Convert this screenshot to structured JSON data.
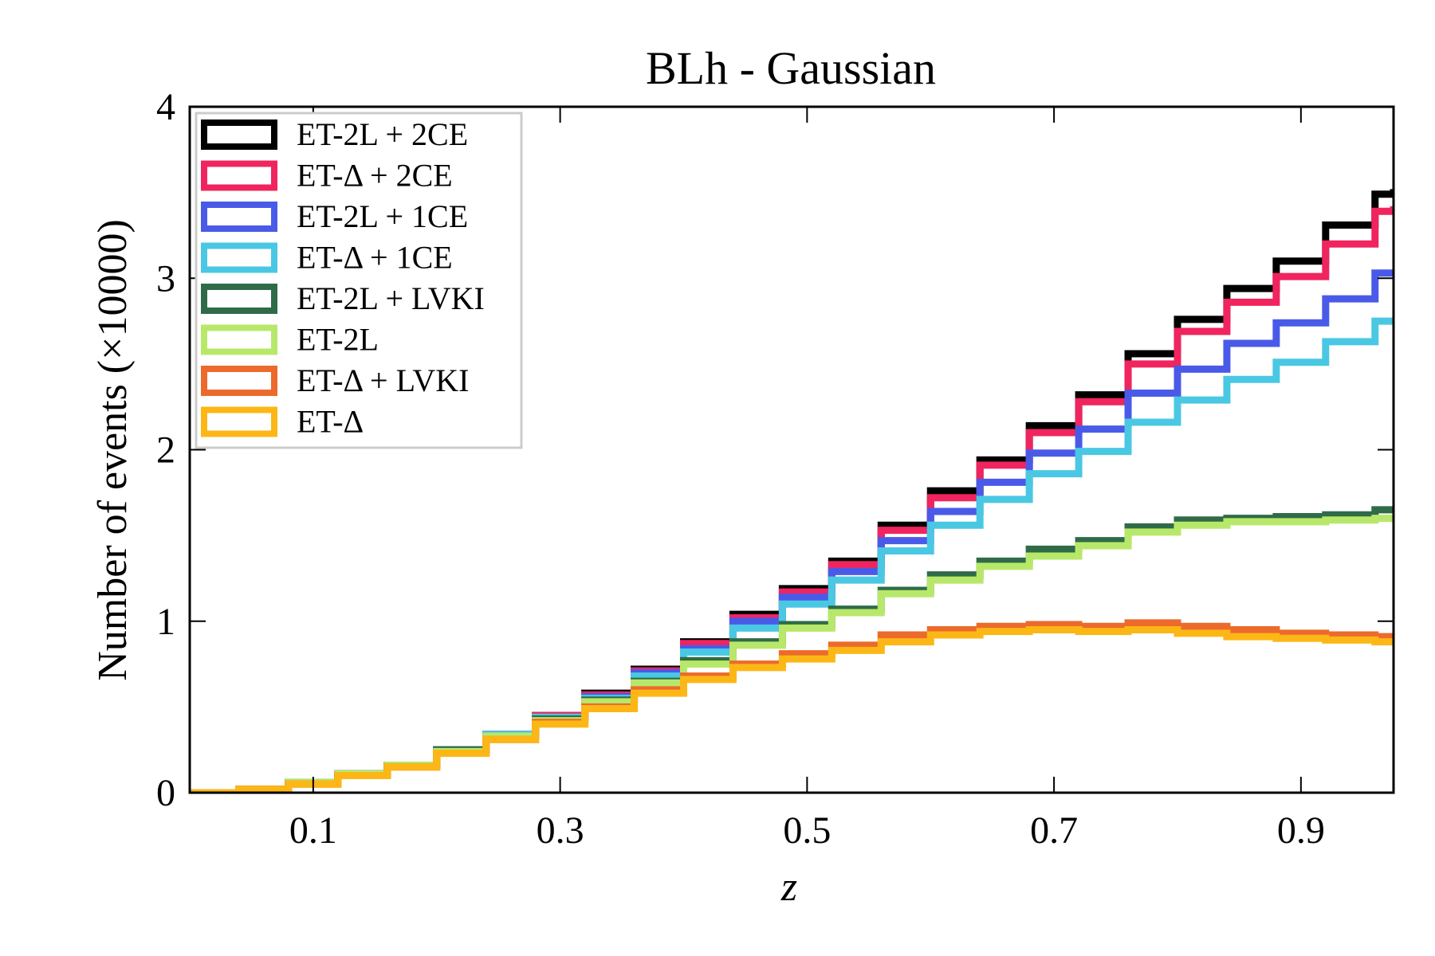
{
  "chart_data": {
    "type": "histogram-step",
    "title": "BLh - Gaussian",
    "xlabel": "z",
    "ylabel": "Number of events (×10000)",
    "xlim": [
      0.0,
      0.975
    ],
    "ylim": [
      0,
      4
    ],
    "x_ticks": [
      0.1,
      0.3,
      0.5,
      0.7,
      0.9
    ],
    "x_tick_labels": [
      "0.1",
      "0.3",
      "0.5",
      "0.7",
      "0.9"
    ],
    "y_ticks": [
      0,
      1,
      2,
      3,
      4
    ],
    "y_tick_labels": [
      "0",
      "1",
      "2",
      "3",
      "4"
    ],
    "grid": false,
    "legend_position": "top-left",
    "bin_edges": [
      0.0,
      0.04,
      0.08,
      0.12,
      0.16,
      0.2,
      0.24,
      0.28,
      0.32,
      0.36,
      0.4,
      0.44,
      0.48,
      0.52,
      0.56,
      0.6,
      0.64,
      0.68,
      0.72,
      0.76,
      0.8,
      0.84,
      0.88,
      0.92,
      0.96,
      0.975
    ],
    "series": [
      {
        "name": "ET-2L + 2CE",
        "color": "#000000",
        "values": [
          0.0,
          0.02,
          0.06,
          0.11,
          0.16,
          0.25,
          0.34,
          0.45,
          0.58,
          0.72,
          0.88,
          1.04,
          1.19,
          1.35,
          1.56,
          1.76,
          1.94,
          2.14,
          2.32,
          2.56,
          2.76,
          2.94,
          3.1,
          3.31,
          3.49,
          3.52
        ]
      },
      {
        "name": "ET-Δ + 2CE",
        "color": "#f0245e",
        "values": [
          0.0,
          0.02,
          0.06,
          0.11,
          0.16,
          0.25,
          0.34,
          0.45,
          0.57,
          0.71,
          0.87,
          1.02,
          1.17,
          1.33,
          1.53,
          1.72,
          1.91,
          2.1,
          2.28,
          2.5,
          2.69,
          2.86,
          3.01,
          3.2,
          3.39,
          3.42
        ]
      },
      {
        "name": "ET-2L + 1CE",
        "color": "#4a5ae8",
        "values": [
          0.0,
          0.02,
          0.06,
          0.11,
          0.16,
          0.25,
          0.34,
          0.44,
          0.56,
          0.7,
          0.84,
          1.0,
          1.14,
          1.29,
          1.47,
          1.64,
          1.81,
          1.98,
          2.12,
          2.33,
          2.47,
          2.62,
          2.74,
          2.88,
          3.03,
          3.05
        ]
      },
      {
        "name": "ET-Δ + 1CE",
        "color": "#4ac8e3",
        "values": [
          0.0,
          0.02,
          0.06,
          0.11,
          0.16,
          0.25,
          0.34,
          0.44,
          0.55,
          0.68,
          0.82,
          0.96,
          1.1,
          1.24,
          1.41,
          1.56,
          1.71,
          1.86,
          1.99,
          2.16,
          2.29,
          2.41,
          2.51,
          2.63,
          2.75,
          2.77
        ]
      },
      {
        "name": "ET-2L + LVKI",
        "color": "#2f6b47",
        "values": [
          0.0,
          0.02,
          0.06,
          0.11,
          0.16,
          0.25,
          0.33,
          0.43,
          0.54,
          0.65,
          0.77,
          0.88,
          0.98,
          1.07,
          1.18,
          1.27,
          1.35,
          1.42,
          1.47,
          1.55,
          1.59,
          1.6,
          1.61,
          1.62,
          1.65,
          1.66
        ]
      },
      {
        "name": "ET-2L",
        "color": "#b8e86a",
        "values": [
          0.0,
          0.02,
          0.06,
          0.11,
          0.16,
          0.24,
          0.33,
          0.42,
          0.53,
          0.64,
          0.75,
          0.86,
          0.96,
          1.05,
          1.16,
          1.24,
          1.32,
          1.38,
          1.44,
          1.52,
          1.56,
          1.58,
          1.58,
          1.59,
          1.6,
          1.6
        ]
      },
      {
        "name": "ET-Δ + LVKI",
        "color": "#ec6a2b",
        "values": [
          0.0,
          0.02,
          0.05,
          0.1,
          0.15,
          0.23,
          0.31,
          0.41,
          0.5,
          0.6,
          0.68,
          0.75,
          0.81,
          0.86,
          0.92,
          0.95,
          0.97,
          0.98,
          0.97,
          0.99,
          0.97,
          0.95,
          0.93,
          0.92,
          0.91,
          0.91
        ]
      },
      {
        "name": "ET-Δ",
        "color": "#fcb716",
        "values": [
          0.0,
          0.02,
          0.05,
          0.1,
          0.15,
          0.23,
          0.31,
          0.4,
          0.49,
          0.58,
          0.66,
          0.73,
          0.78,
          0.83,
          0.88,
          0.92,
          0.94,
          0.95,
          0.94,
          0.95,
          0.93,
          0.91,
          0.9,
          0.89,
          0.88,
          0.88
        ]
      }
    ]
  }
}
